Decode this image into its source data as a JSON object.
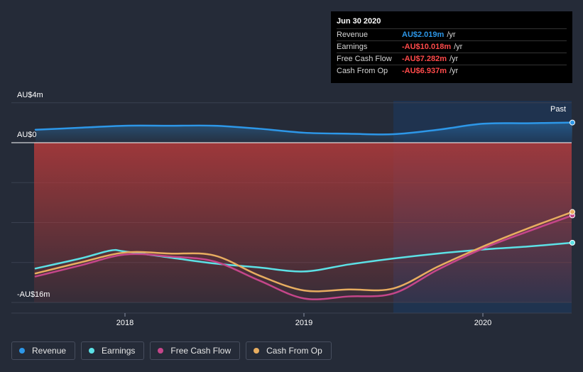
{
  "tooltip": {
    "date": "Jun 30 2020",
    "rows": [
      {
        "label": "Revenue",
        "value": "AU$2.019m",
        "unit": "/yr",
        "color": "#2d97e8"
      },
      {
        "label": "Earnings",
        "value": "-AU$10.018m",
        "unit": "/yr",
        "color": "#ff4a4a"
      },
      {
        "label": "Free Cash Flow",
        "value": "-AU$7.282m",
        "unit": "/yr",
        "color": "#ff4a4a"
      },
      {
        "label": "Cash From Op",
        "value": "-AU$6.937m",
        "unit": "/yr",
        "color": "#ff4a4a"
      }
    ]
  },
  "past_label": "Past",
  "legend": [
    {
      "label": "Revenue",
      "color": "#2d97e8"
    },
    {
      "label": "Earnings",
      "color": "#5ce1e6"
    },
    {
      "label": "Free Cash Flow",
      "color": "#c5468a"
    },
    {
      "label": "Cash From Op",
      "color": "#e8ad60"
    }
  ],
  "chart_data": {
    "type": "line",
    "y_axis": {
      "min": -16,
      "max": 4,
      "unit": "AU$m",
      "tick_labels": [
        "AU$4m",
        "AU$0",
        "-AU$16m"
      ],
      "tick_values": [
        4,
        0,
        -16
      ]
    },
    "x_axis": {
      "tick_labels": [
        "2018",
        "2019",
        "2020"
      ],
      "tick_values": [
        2018,
        2019,
        2020
      ],
      "range": [
        2017.5,
        2020.5
      ]
    },
    "past_region_start": 2019.5,
    "series": [
      {
        "name": "Revenue",
        "color": "#2d97e8",
        "x": [
          2017.5,
          2017.75,
          2018.0,
          2018.25,
          2018.5,
          2018.75,
          2019.0,
          2019.25,
          2019.5,
          2019.75,
          2020.0,
          2020.25,
          2020.5
        ],
        "y": [
          1.3,
          1.5,
          1.7,
          1.7,
          1.7,
          1.4,
          1.0,
          0.9,
          0.85,
          1.3,
          1.9,
          1.95,
          2.019
        ]
      },
      {
        "name": "Earnings",
        "color": "#5ce1e6",
        "x": [
          2017.5,
          2017.75,
          2017.92,
          2018.0,
          2018.25,
          2018.5,
          2018.75,
          2019.0,
          2019.25,
          2019.5,
          2019.75,
          2020.0,
          2020.25,
          2020.5
        ],
        "y": [
          -12.6,
          -11.6,
          -10.8,
          -10.9,
          -11.5,
          -12.1,
          -12.5,
          -12.9,
          -12.2,
          -11.6,
          -11.1,
          -10.7,
          -10.4,
          -10.018
        ]
      },
      {
        "name": "Free Cash Flow",
        "color": "#c5468a",
        "x": [
          2017.5,
          2017.75,
          2018.0,
          2018.25,
          2018.5,
          2018.75,
          2019.0,
          2019.25,
          2019.5,
          2019.75,
          2020.0,
          2020.25,
          2020.5
        ],
        "y": [
          -13.4,
          -12.3,
          -11.2,
          -11.4,
          -11.9,
          -13.8,
          -15.6,
          -15.4,
          -15.1,
          -12.7,
          -10.6,
          -8.9,
          -7.282
        ]
      },
      {
        "name": "Cash From Op",
        "color": "#e8ad60",
        "x": [
          2017.5,
          2017.75,
          2018.0,
          2018.25,
          2018.5,
          2018.75,
          2019.0,
          2019.25,
          2019.5,
          2019.75,
          2020.0,
          2020.25,
          2020.5
        ],
        "y": [
          -13.1,
          -12.0,
          -11.0,
          -11.1,
          -11.3,
          -13.3,
          -14.8,
          -14.7,
          -14.6,
          -12.4,
          -10.4,
          -8.6,
          -6.937
        ]
      }
    ]
  }
}
